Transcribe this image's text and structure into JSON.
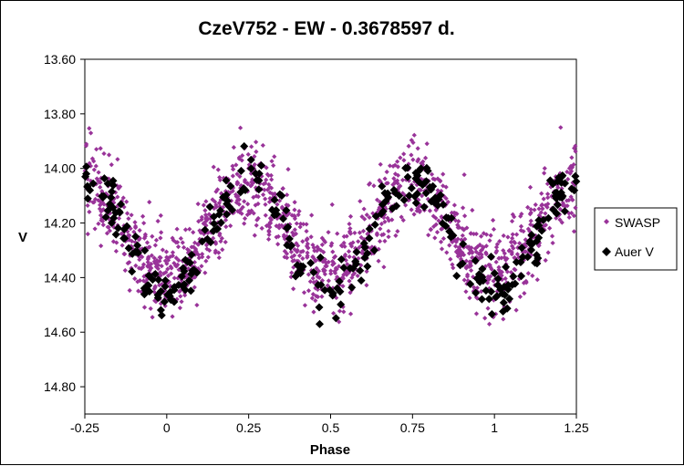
{
  "chart_data": {
    "type": "scatter",
    "title": "CzeV752 - EW - 0.3678597 d.",
    "xlabel": "Phase",
    "ylabel": "V",
    "xlim": [
      -0.25,
      1.25
    ],
    "ylim": [
      13.6,
      14.9
    ],
    "y_inverted": true,
    "grid": false,
    "legend_position": "right",
    "x_ticks": [
      -0.25,
      0,
      0.25,
      0.5,
      0.75,
      1,
      1.25
    ],
    "x_tick_labels": [
      "-0.25",
      "0",
      "0.25",
      "0.5",
      "0.75",
      "1",
      "1.25"
    ],
    "y_ticks": [
      13.6,
      13.8,
      14.0,
      14.2,
      14.4,
      14.6,
      14.8
    ],
    "y_tick_labels": [
      "13.60",
      "13.80",
      "14.00",
      "14.20",
      "14.40",
      "14.60",
      "14.80"
    ],
    "colors": {
      "swasp": "#993399",
      "auer": "#000000"
    },
    "series": [
      {
        "name": "SWASP",
        "marker": "small-diamond",
        "color": "#993399",
        "model": {
          "mean": 14.225,
          "amplitude": 0.165,
          "minimum_phase": 0.0,
          "scatter_sd": 0.08,
          "count": 1500
        },
        "note_points_sample": [
          [
            -0.2,
            14.12
          ],
          [
            0.0,
            14.39
          ],
          [
            0.25,
            14.06
          ],
          [
            0.5,
            14.38
          ],
          [
            0.75,
            14.07
          ],
          [
            1.0,
            14.39
          ],
          [
            1.2,
            14.09
          ]
        ]
      },
      {
        "name": "Auer V",
        "marker": "large-diamond",
        "color": "#000000",
        "model": {
          "mean": 14.25,
          "amplitude": 0.21,
          "minimum_phase": 0.0,
          "scatter_sd": 0.045,
          "count": 320
        },
        "note_points_sample": [
          [
            -0.2,
            14.1
          ],
          [
            0.0,
            14.45
          ],
          [
            0.25,
            14.05
          ],
          [
            0.5,
            14.46
          ],
          [
            0.75,
            14.06
          ],
          [
            1.0,
            14.46
          ],
          [
            1.2,
            14.08
          ]
        ]
      }
    ]
  }
}
